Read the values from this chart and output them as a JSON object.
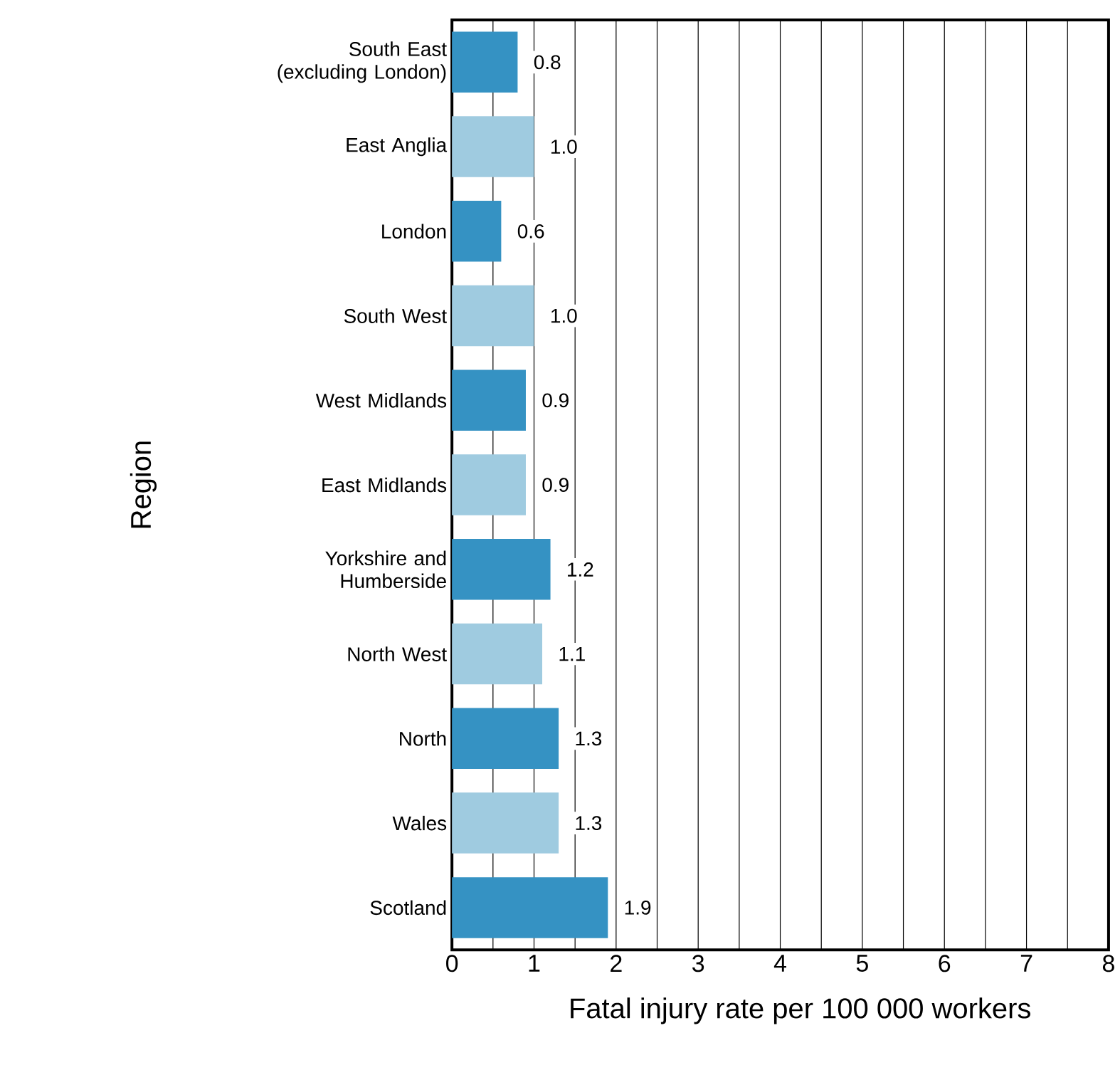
{
  "chart_data": {
    "type": "bar",
    "orientation": "horizontal",
    "xlabel": "Fatal injury rate per 100 000 workers",
    "ylabel": "Region",
    "categories": [
      "South East (excluding London)",
      "East Anglia",
      "London",
      "South West",
      "West Midlands",
      "East Midlands",
      "Yorkshire and Humberside",
      "North West",
      "North",
      "Wales",
      "Scotland"
    ],
    "values": [
      0.8,
      1.0,
      0.6,
      1.0,
      0.9,
      0.9,
      1.2,
      1.1,
      1.3,
      1.3,
      1.9
    ],
    "value_labels": [
      "0.8",
      "1.0",
      "0.6",
      "1.0",
      "0.9",
      "0.9",
      "1.2",
      "1.1",
      "1.3",
      "1.3",
      "1.9"
    ],
    "colors": [
      "#3592c3",
      "#9fcbe0",
      "#3592c3",
      "#9fcbe0",
      "#3592c3",
      "#9fcbe0",
      "#3592c3",
      "#9fcbe0",
      "#3592c3",
      "#9fcbe0",
      "#3592c3"
    ],
    "xlim": [
      0,
      8
    ],
    "xticks": [
      0,
      {
        "value": 0.5,
        "label": null
      },
      1,
      {
        "value": 1.5,
        "label": null
      },
      2,
      {
        "value": 2.5,
        "label": null
      },
      3,
      {
        "value": 3.5,
        "label": null
      },
      4,
      {
        "value": 4.5,
        "label": null
      },
      5,
      {
        "value": 5.5,
        "label": null
      },
      6,
      {
        "value": 6.5,
        "label": null
      },
      7,
      {
        "value": 7.5,
        "label": null
      },
      8
    ],
    "grid": "x"
  }
}
